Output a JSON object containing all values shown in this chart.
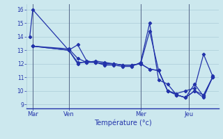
{
  "background_color": "#cce8ee",
  "grid_color": "#aaccd8",
  "line_color": "#2233aa",
  "vline_color": "#556688",
  "xlabel": "Température (°c)",
  "xlabel_color": "#2233aa",
  "yticks": [
    9,
    10,
    11,
    12,
    13,
    14,
    15,
    16
  ],
  "ylim": [
    8.7,
    16.4
  ],
  "xlim": [
    -1,
    63
  ],
  "xtick_labels": [
    "Mar",
    "Ven",
    "Mer",
    "Jeu"
  ],
  "xtick_positions": [
    1,
    13,
    37,
    53
  ],
  "vline_positions": [
    1,
    13,
    37,
    53
  ],
  "lines": [
    {
      "x": [
        0,
        1,
        13,
        16,
        19,
        22,
        25,
        28,
        31,
        34,
        37,
        40,
        43,
        46,
        49,
        52,
        55,
        58,
        61
      ],
      "y": [
        14.0,
        16.0,
        13.0,
        12.0,
        12.2,
        12.1,
        11.9,
        11.9,
        11.8,
        11.8,
        12.1,
        15.0,
        10.8,
        10.5,
        9.7,
        9.5,
        10.0,
        9.7,
        11.0
      ]
    },
    {
      "x": [
        1,
        13,
        16,
        19,
        22,
        25,
        28,
        31,
        34,
        37,
        40,
        43,
        46,
        49,
        52,
        55,
        58,
        61
      ],
      "y": [
        13.3,
        13.1,
        12.4,
        12.1,
        12.2,
        12.1,
        12.0,
        11.9,
        11.9,
        12.0,
        14.4,
        11.5,
        10.0,
        9.7,
        9.5,
        10.5,
        9.6,
        11.0
      ]
    },
    {
      "x": [
        1,
        13,
        16,
        19,
        22,
        25,
        28,
        31,
        34,
        37,
        40,
        43,
        46,
        49,
        52,
        55,
        58,
        61
      ],
      "y": [
        13.3,
        13.0,
        13.4,
        12.2,
        12.1,
        12.0,
        12.0,
        11.9,
        11.9,
        12.0,
        11.6,
        11.5,
        10.0,
        9.7,
        9.5,
        10.0,
        9.5,
        11.0
      ]
    },
    {
      "x": [
        1,
        13,
        16,
        19,
        22,
        25,
        28,
        31,
        34,
        37,
        40,
        43,
        46,
        49,
        52,
        55,
        58,
        61
      ],
      "y": [
        13.3,
        13.0,
        12.1,
        12.1,
        12.1,
        12.0,
        12.0,
        11.9,
        11.9,
        12.0,
        11.6,
        11.5,
        10.0,
        9.8,
        10.0,
        10.2,
        12.7,
        11.1
      ]
    }
  ],
  "figsize": [
    3.2,
    2.0
  ],
  "dpi": 100
}
